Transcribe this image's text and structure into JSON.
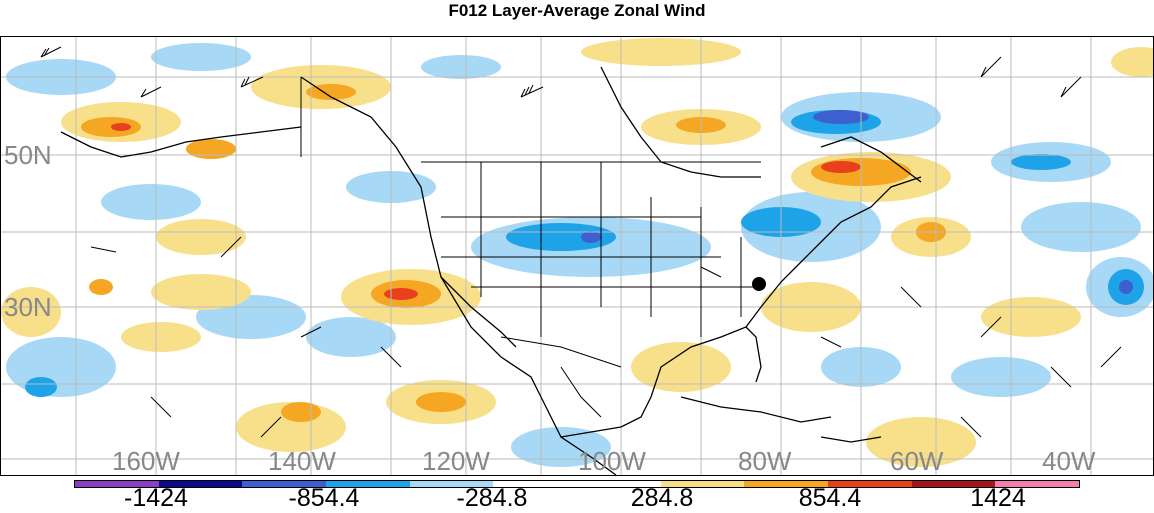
{
  "title": "F012 Layer-Average Zonal Wind",
  "lat_labels": [
    "50N",
    "30N"
  ],
  "lon_labels": [
    "160W",
    "140W",
    "120W",
    "100W",
    "80W",
    "60W",
    "40W"
  ],
  "colorbar": {
    "colors": [
      "#8a3fc2",
      "#0a0a8c",
      "#3d5fcf",
      "#1fa3e8",
      "#a7d8f5",
      "#ffffff",
      "#ffffff",
      "#f8e08a",
      "#f5a623",
      "#e8401c",
      "#a3161c",
      "#f27fae"
    ],
    "labels": [
      "-1424",
      "-854.4",
      "-284.8",
      "284.8",
      "854.4",
      "1424"
    ]
  },
  "colors": {
    "negative_light": "#a7d8f5",
    "negative_mid": "#1fa3e8",
    "negative_dark": "#3d5fcf",
    "positive_light": "#f8e08a",
    "positive_mid": "#f5a623",
    "positive_dark": "#e8401c"
  }
}
